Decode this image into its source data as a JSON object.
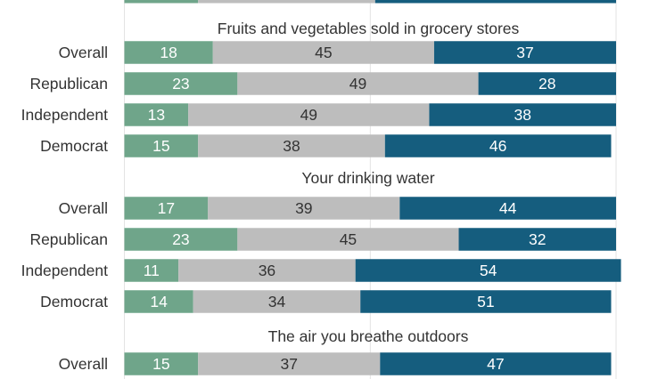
{
  "chart_data": {
    "type": "bar",
    "stacked": true,
    "orientation": "horizontal",
    "colors": [
      "#6fa58a",
      "#bdbdbd",
      "#155d7e"
    ],
    "sections": [
      {
        "title": "Fruits and vegetables sold in grocery stores",
        "rows": [
          {
            "label": "Overall",
            "values": [
              18,
              45,
              37
            ]
          },
          {
            "label": "Republican",
            "values": [
              23,
              49,
              28
            ]
          },
          {
            "label": "Independent",
            "values": [
              13,
              49,
              38
            ]
          },
          {
            "label": "Democrat",
            "values": [
              15,
              38,
              46
            ]
          }
        ]
      },
      {
        "title": "Your drinking water",
        "rows": [
          {
            "label": "Overall",
            "values": [
              17,
              39,
              44
            ]
          },
          {
            "label": "Republican",
            "values": [
              23,
              45,
              32
            ]
          },
          {
            "label": "Independent",
            "values": [
              11,
              36,
              54
            ]
          },
          {
            "label": "Democrat",
            "values": [
              14,
              34,
              51
            ]
          }
        ]
      },
      {
        "title": "The air you breathe outdoors",
        "rows": [
          {
            "label": "Overall",
            "values": [
              15,
              37,
              47
            ]
          }
        ]
      }
    ]
  }
}
